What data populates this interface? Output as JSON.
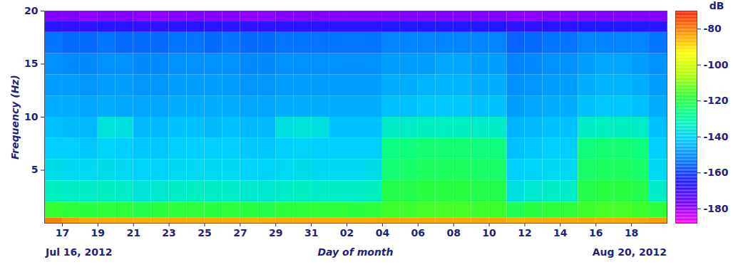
{
  "chart_data": {
    "type": "heatmap",
    "x_label": "Day of month",
    "y_label": "Frequency (Hz)",
    "start_label": "Jul 16, 2012",
    "end_label": "Aug 20, 2012",
    "xlim": [
      "2012-07-16",
      "2012-08-20"
    ],
    "xticks": [
      {
        "value": "2012-07-17",
        "label": "17"
      },
      {
        "value": "2012-07-19",
        "label": "19"
      },
      {
        "value": "2012-07-21",
        "label": "21"
      },
      {
        "value": "2012-07-23",
        "label": "23"
      },
      {
        "value": "2012-07-25",
        "label": "25"
      },
      {
        "value": "2012-07-27",
        "label": "27"
      },
      {
        "value": "2012-07-29",
        "label": "29"
      },
      {
        "value": "2012-07-31",
        "label": "31"
      },
      {
        "value": "2012-08-02",
        "label": "02"
      },
      {
        "value": "2012-08-04",
        "label": "04"
      },
      {
        "value": "2012-08-06",
        "label": "06"
      },
      {
        "value": "2012-08-08",
        "label": "08"
      },
      {
        "value": "2012-08-10",
        "label": "10"
      },
      {
        "value": "2012-08-12",
        "label": "12"
      },
      {
        "value": "2012-08-14",
        "label": "14"
      },
      {
        "value": "2012-08-16",
        "label": "16"
      },
      {
        "value": "2012-08-18",
        "label": "18"
      }
    ],
    "ylim": [
      0,
      20
    ],
    "yticks": [
      5,
      10,
      15,
      20
    ],
    "x": [
      "2012-07-16",
      "2012-07-17",
      "2012-07-18",
      "2012-07-19",
      "2012-07-20",
      "2012-07-21",
      "2012-07-22",
      "2012-07-23",
      "2012-07-24",
      "2012-07-25",
      "2012-07-26",
      "2012-07-27",
      "2012-07-28",
      "2012-07-29",
      "2012-07-30",
      "2012-07-31",
      "2012-08-01",
      "2012-08-02",
      "2012-08-03",
      "2012-08-04",
      "2012-08-05",
      "2012-08-06",
      "2012-08-07",
      "2012-08-08",
      "2012-08-09",
      "2012-08-10",
      "2012-08-11",
      "2012-08-12",
      "2012-08-13",
      "2012-08-14",
      "2012-08-15",
      "2012-08-16",
      "2012-08-17",
      "2012-08-18",
      "2012-08-19"
    ],
    "y_edges": [
      0,
      0.5,
      2,
      4,
      6,
      8,
      10,
      12,
      14,
      16,
      18,
      19,
      20
    ],
    "values": [
      [
        -80,
        -117,
        -133,
        -138,
        -141,
        -143,
        -146,
        -148,
        -150,
        -154,
        -166,
        -178
      ],
      [
        -83,
        -118,
        -134,
        -139,
        -141,
        -144,
        -146,
        -148,
        -151,
        -155,
        -167,
        -178
      ],
      [
        -84,
        -119,
        -134,
        -139,
        -142,
        -144,
        -147,
        -149,
        -151,
        -155,
        -167,
        -179
      ],
      [
        -84,
        -118,
        -133,
        -138,
        -140,
        -136,
        -146,
        -148,
        -150,
        -154,
        -166,
        -178
      ],
      [
        -84,
        -118,
        -134,
        -139,
        -141,
        -137,
        -147,
        -148,
        -150,
        -155,
        -166,
        -178
      ],
      [
        -85,
        -120,
        -136,
        -140,
        -142,
        -144,
        -147,
        -149,
        -151,
        -155,
        -167,
        -179
      ],
      [
        -85,
        -119,
        -135,
        -140,
        -142,
        -144,
        -147,
        -149,
        -151,
        -155,
        -167,
        -179
      ],
      [
        -84,
        -118,
        -134,
        -139,
        -141,
        -143,
        -146,
        -148,
        -150,
        -154,
        -166,
        -178
      ],
      [
        -84,
        -118,
        -133,
        -139,
        -141,
        -143,
        -146,
        -148,
        -150,
        -154,
        -166,
        -178
      ],
      [
        -84,
        -119,
        -134,
        -139,
        -141,
        -144,
        -146,
        -148,
        -150,
        -155,
        -166,
        -178
      ],
      [
        -84,
        -118,
        -134,
        -139,
        -141,
        -143,
        -146,
        -148,
        -150,
        -154,
        -166,
        -178
      ],
      [
        -85,
        -119,
        -135,
        -140,
        -142,
        -144,
        -147,
        -149,
        -151,
        -155,
        -167,
        -179
      ],
      [
        -85,
        -120,
        -135,
        -140,
        -142,
        -144,
        -147,
        -149,
        -151,
        -155,
        -167,
        -179
      ],
      [
        -84,
        -118,
        -134,
        -139,
        -141,
        -137,
        -146,
        -148,
        -150,
        -154,
        -166,
        -178
      ],
      [
        -84,
        -118,
        -133,
        -138,
        -140,
        -136,
        -146,
        -148,
        -150,
        -154,
        -166,
        -178
      ],
      [
        -84,
        -118,
        -134,
        -139,
        -141,
        -137,
        -146,
        -148,
        -150,
        -154,
        -166,
        -178
      ],
      [
        -84,
        -118,
        -134,
        -139,
        -141,
        -143,
        -146,
        -148,
        -150,
        -154,
        -166,
        -178
      ],
      [
        -84,
        -119,
        -134,
        -139,
        -141,
        -143,
        -146,
        -148,
        -150,
        -154,
        -166,
        -178
      ],
      [
        -84,
        -118,
        -133,
        -138,
        -141,
        -143,
        -146,
        -148,
        -150,
        -154,
        -166,
        -178
      ],
      [
        -84,
        -116,
        -120,
        -124,
        -126,
        -134,
        -143,
        -146,
        -148,
        -152,
        -165,
        -178
      ],
      [
        -84,
        -116,
        -120,
        -123,
        -125,
        -134,
        -143,
        -146,
        -148,
        -152,
        -165,
        -178
      ],
      [
        -84,
        -115,
        -119,
        -122,
        -124,
        -133,
        -142,
        -145,
        -148,
        -152,
        -165,
        -178
      ],
      [
        -84,
        -115,
        -119,
        -122,
        -124,
        -133,
        -142,
        -145,
        -147,
        -152,
        -165,
        -178
      ],
      [
        -84,
        -115,
        -119,
        -122,
        -124,
        -133,
        -142,
        -145,
        -147,
        -152,
        -165,
        -178
      ],
      [
        -84,
        -116,
        -120,
        -123,
        -125,
        -134,
        -143,
        -146,
        -148,
        -152,
        -165,
        -178
      ],
      [
        -84,
        -116,
        -120,
        -123,
        -125,
        -134,
        -143,
        -146,
        -148,
        -152,
        -165,
        -178
      ],
      [
        -85,
        -121,
        -137,
        -141,
        -143,
        -145,
        -148,
        -150,
        -152,
        -156,
        -167,
        -179
      ],
      [
        -84,
        -119,
        -135,
        -140,
        -142,
        -144,
        -147,
        -149,
        -151,
        -155,
        -167,
        -179
      ],
      [
        -84,
        -118,
        -134,
        -139,
        -141,
        -143,
        -146,
        -148,
        -150,
        -154,
        -166,
        -178
      ],
      [
        -84,
        -118,
        -134,
        -139,
        -141,
        -143,
        -146,
        -148,
        -150,
        -154,
        -166,
        -178
      ],
      [
        -84,
        -116,
        -120,
        -123,
        -125,
        -134,
        -143,
        -146,
        -148,
        -152,
        -165,
        -178
      ],
      [
        -84,
        -115,
        -119,
        -122,
        -124,
        -133,
        -142,
        -145,
        -147,
        -152,
        -165,
        -178
      ],
      [
        -84,
        -115,
        -119,
        -122,
        -124,
        -133,
        -142,
        -145,
        -147,
        -152,
        -165,
        -178
      ],
      [
        -84,
        -116,
        -120,
        -123,
        -125,
        -134,
        -143,
        -146,
        -148,
        -152,
        -165,
        -178
      ],
      [
        -83,
        -118,
        -134,
        -139,
        -141,
        -143,
        -146,
        -148,
        -150,
        -154,
        -166,
        -178
      ]
    ],
    "colorbar": {
      "label": "dB",
      "lim": [
        -188,
        -70
      ],
      "ticks": [
        -80,
        -100,
        -120,
        -140,
        -160,
        -180
      ]
    }
  }
}
